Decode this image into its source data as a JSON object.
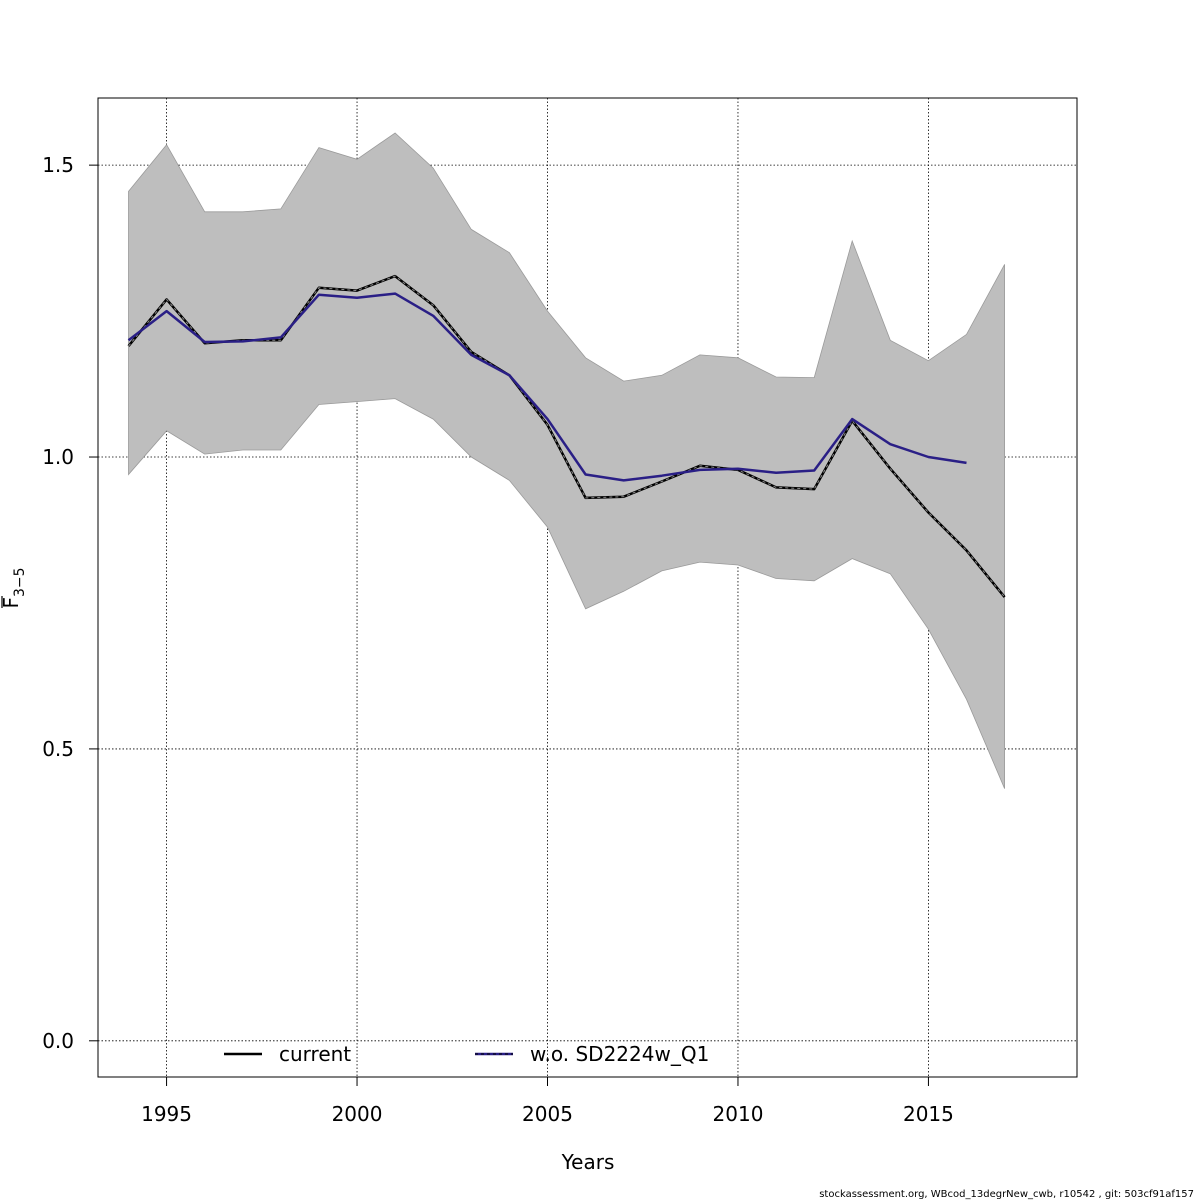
{
  "chart_data": {
    "type": "line",
    "xlabel": "Years",
    "ylabel": "F",
    "ylabel_subscript": "3−5",
    "xlim": [
      1993.2,
      2018.9
    ],
    "ylim": [
      -0.062,
      1.615
    ],
    "xticks": [
      1995,
      2000,
      2005,
      2010,
      2015
    ],
    "xtick_labels": [
      "1995",
      "2000",
      "2005",
      "2010",
      "2015"
    ],
    "yticks": [
      0.0,
      0.5,
      1.0,
      1.5
    ],
    "ytick_labels": [
      "0.0",
      "0.5",
      "1.0",
      "1.5"
    ],
    "grid": true,
    "legend_position": "bottom",
    "band": {
      "x": [
        1994,
        1995,
        1996,
        1997,
        1998,
        1999,
        2000,
        2001,
        2002,
        2003,
        2004,
        2005,
        2006,
        2007,
        2008,
        2009,
        2010,
        2011,
        2012,
        2013,
        2014,
        2015,
        2016,
        2017
      ],
      "lower": [
        0.97,
        1.045,
        1.005,
        1.012,
        1.012,
        1.09,
        1.095,
        1.1,
        1.065,
        1.0,
        0.96,
        0.88,
        0.74,
        0.77,
        0.805,
        0.82,
        0.815,
        0.792,
        0.788,
        0.826,
        0.8,
        0.705,
        0.585,
        0.432
      ],
      "upper": [
        1.455,
        1.535,
        1.42,
        1.42,
        1.425,
        1.53,
        1.51,
        1.555,
        1.495,
        1.39,
        1.35,
        1.25,
        1.17,
        1.13,
        1.14,
        1.175,
        1.17,
        1.137,
        1.136,
        1.37,
        1.2,
        1.165,
        1.21,
        1.33
      ],
      "color": "#bebebe"
    },
    "series": [
      {
        "name": "current",
        "x": [
          1994,
          1995,
          1996,
          1997,
          1998,
          1999,
          2000,
          2001,
          2002,
          2003,
          2004,
          2005,
          2006,
          2007,
          2008,
          2009,
          2010,
          2011,
          2012,
          2013,
          2014,
          2015,
          2016,
          2017
        ],
        "values": [
          1.19,
          1.27,
          1.195,
          1.2,
          1.2,
          1.29,
          1.285,
          1.31,
          1.26,
          1.18,
          1.14,
          1.055,
          0.93,
          0.932,
          0.958,
          0.985,
          0.978,
          0.948,
          0.945,
          1.062,
          0.98,
          0.905,
          0.84,
          0.76
        ],
        "color": "#000000",
        "style": "solid"
      },
      {
        "name": "w.o. SD2224w_Q1",
        "x": [
          1994,
          1995,
          1996,
          1997,
          1998,
          1999,
          2000,
          2001,
          2002,
          2003,
          2004,
          2005,
          2006,
          2007,
          2008,
          2009,
          2010,
          2011,
          2012,
          2013,
          2014,
          2015,
          2016
        ],
        "values": [
          1.2,
          1.25,
          1.197,
          1.198,
          1.205,
          1.278,
          1.273,
          1.28,
          1.242,
          1.175,
          1.14,
          1.065,
          0.97,
          0.96,
          0.968,
          0.978,
          0.98,
          0.973,
          0.977,
          1.065,
          1.022,
          1.0,
          0.99
        ],
        "color": "#2a1f86",
        "style": "dashed"
      }
    ],
    "legend": [
      "current",
      "w.o. SD2224w_Q1"
    ]
  },
  "footer": "stockassessment.org, WBcod_13degrNew_cwb, r10542 , git: 503cf91af157"
}
